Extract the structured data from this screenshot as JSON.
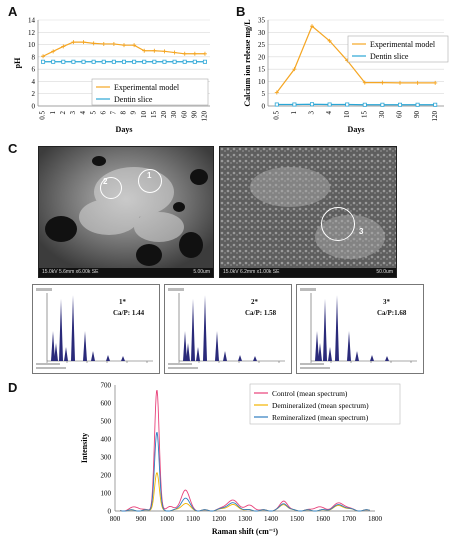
{
  "panels": {
    "A": "A",
    "B": "B",
    "C": "C",
    "D": "D"
  },
  "chart_data": [
    {
      "type": "line",
      "panel": "A",
      "x": [
        "0.5",
        "1",
        "2",
        "3",
        "4",
        "5",
        "6",
        "7",
        "8",
        "9",
        "10",
        "15",
        "20",
        "30",
        "60",
        "90",
        "120"
      ],
      "series": [
        {
          "name": "Experimental model",
          "color": "#f5a623",
          "values": [
            8.1,
            8.9,
            9.7,
            10.4,
            10.4,
            10.2,
            10.1,
            10.1,
            9.9,
            9.9,
            9.0,
            9.0,
            8.9,
            8.7,
            8.5,
            8.5,
            8.5
          ]
        },
        {
          "name": "Dentin slice",
          "color": "#2aa6d6",
          "values": [
            7.2,
            7.2,
            7.2,
            7.2,
            7.2,
            7.2,
            7.2,
            7.2,
            7.2,
            7.2,
            7.2,
            7.2,
            7.2,
            7.2,
            7.2,
            7.2,
            7.2
          ]
        }
      ],
      "xlabel": "Days",
      "ylabel": "pH",
      "ylim": [
        0,
        14
      ],
      "yticks": [
        0,
        2,
        4,
        6,
        8,
        10,
        12,
        14
      ],
      "legend": "bottom-right",
      "grid": true
    },
    {
      "type": "line",
      "panel": "B",
      "x": [
        "0.5",
        "1",
        "3",
        "4",
        "10",
        "15",
        "30",
        "60",
        "90",
        "120"
      ],
      "series": [
        {
          "name": "Experimental model",
          "color": "#f5a623",
          "values": [
            5.5,
            15,
            32.5,
            26.5,
            18.5,
            9.5,
            9.5,
            9.4,
            9.4,
            9.4
          ]
        },
        {
          "name": "Dentin slice",
          "color": "#2aa6d6",
          "values": [
            0.6,
            0.6,
            0.7,
            0.6,
            0.6,
            0.5,
            0.5,
            0.5,
            0.5,
            0.5
          ]
        }
      ],
      "xlabel": "Days",
      "ylabel": "Calcium ion release mg/L",
      "ylim": [
        0,
        35
      ],
      "yticks": [
        0,
        5,
        10,
        15,
        20,
        25,
        30,
        35
      ],
      "legend": "top-right",
      "grid": true
    },
    {
      "type": "line",
      "panel": "D",
      "xlabel": "Raman shift (cm⁻¹)",
      "ylabel": "Intensity",
      "xlim": [
        800,
        1800
      ],
      "ylim": [
        0,
        700
      ],
      "xticks": [
        800,
        900,
        1000,
        1100,
        1200,
        1300,
        1400,
        1500,
        1600,
        1700,
        1800
      ],
      "yticks": [
        0,
        100,
        200,
        300,
        400,
        500,
        600,
        700
      ],
      "legend": "top-right",
      "series": [
        {
          "name": "Control (mean spectrum)",
          "color": "#e8417a",
          "peaks": [
            [
              880,
              20,
              18
            ],
            [
              961,
              670,
              9
            ],
            [
              1010,
              25,
              12
            ],
            [
              1070,
              115,
              16
            ],
            [
              1250,
              55,
              25
            ],
            [
              1320,
              25,
              18
            ],
            [
              1450,
              55,
              14
            ],
            [
              1580,
              20,
              18
            ],
            [
              1665,
              40,
              25
            ]
          ]
        },
        {
          "name": "Demineralized (mean spectrum)",
          "color": "#f2b400",
          "peaks": [
            [
              961,
              210,
              9
            ],
            [
              1070,
              40,
              16
            ],
            [
              1250,
              30,
              25
            ],
            [
              1450,
              35,
              14
            ],
            [
              1665,
              25,
              25
            ]
          ]
        },
        {
          "name": "Remineralized (mean spectrum)",
          "color": "#2e7dbf",
          "peaks": [
            [
              961,
              435,
              9
            ],
            [
              1070,
              70,
              16
            ],
            [
              1250,
              40,
              25
            ],
            [
              1450,
              40,
              14
            ],
            [
              1665,
              30,
              25
            ]
          ]
        }
      ]
    }
  ],
  "sem": [
    {
      "left_text": "15.0kV 5.6mm x6.00k SE",
      "right_text": "5.00um",
      "markers": [
        "2",
        "1"
      ]
    },
    {
      "left_text": "15.0kV 6.2mm x1.00k SE",
      "right_text": "50.0um",
      "markers": [
        "3"
      ]
    }
  ],
  "edx": [
    {
      "id": "1*",
      "ratio": "Ca/P: 1.44"
    },
    {
      "id": "2*",
      "ratio": "Ca/P: 1.58"
    },
    {
      "id": "3*",
      "ratio": "Ca/P:1.68"
    }
  ]
}
